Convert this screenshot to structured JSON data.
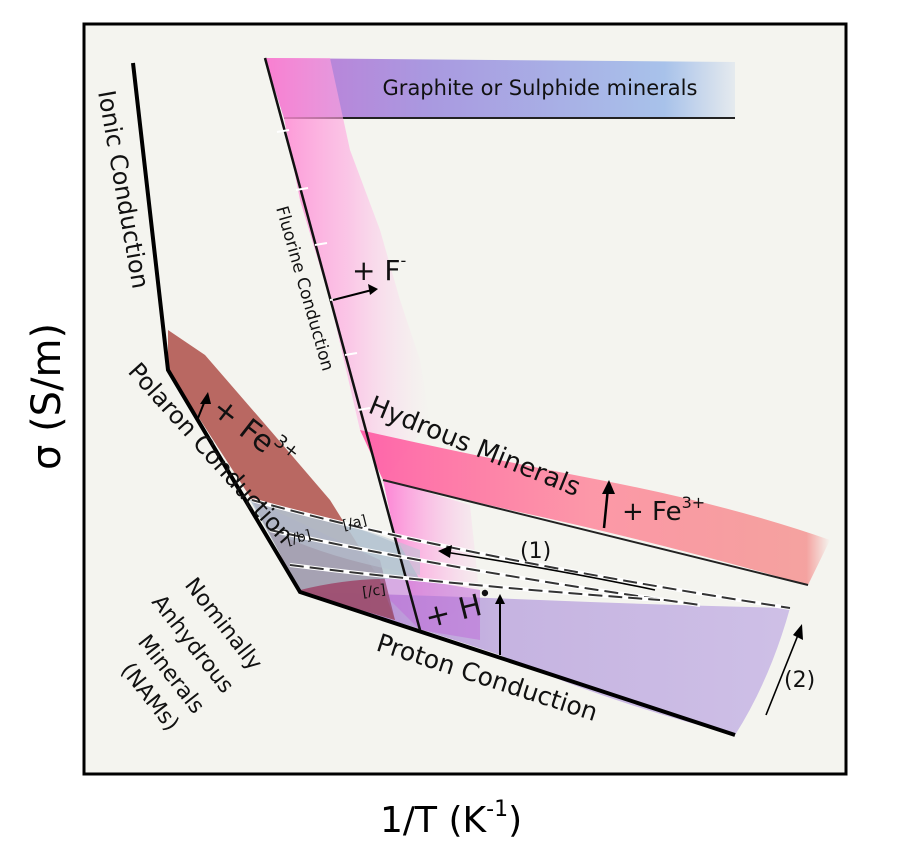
{
  "axes": {
    "y_label": "σ (S/m)",
    "x_label_main": "1/T (K",
    "x_label_exp": "-1",
    "x_label_close": ")"
  },
  "regions": {
    "graphite": "Graphite or Sulphide minerals",
    "ionic": "Ionic Conduction",
    "fluorine": "Fluorine Conduction",
    "hydrous": "Hydrous Minerals",
    "polaron": "Polaron Conduction",
    "proton": "Proton Conduction",
    "nams": [
      "Nominally",
      "Anhydrous",
      "Minerals",
      "(NAMs)"
    ]
  },
  "annotations": {
    "plus_f": "+ F",
    "plus_f_sup": "-",
    "plus_fe_left": "+ Fe",
    "plus_fe_left_sup": "3+",
    "plus_fe_right": "+ Fe",
    "plus_fe_right_sup": "3+",
    "plus_h": "+ H",
    "plus_h_sup": "•",
    "arrow_1": "(1)",
    "arrow_2": "(2)",
    "dir_a": "[/a]",
    "dir_b": "[/b]",
    "dir_c": "[/c]"
  },
  "colors": {
    "frame_bg": "#f4f4ef",
    "polaron_fill": "#b5605a",
    "proton_fill": "#c8b7e0",
    "hydrous_pink": "#ff7fc8",
    "hydrous_red": "#f06060",
    "graphite_blue": "#8fb0e0",
    "graphite_purple": "#b080d8"
  }
}
